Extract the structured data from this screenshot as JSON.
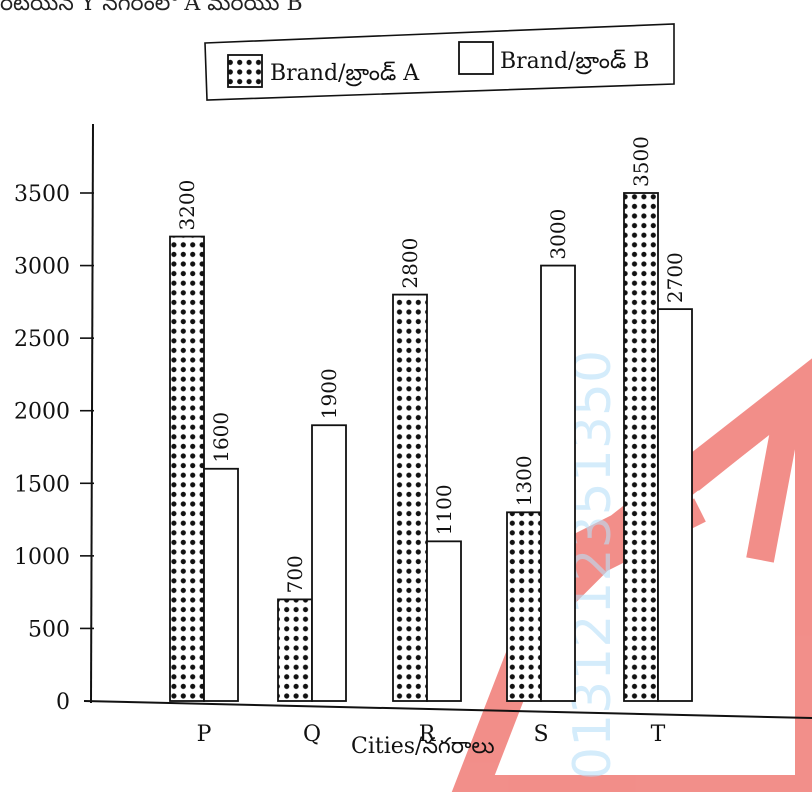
{
  "header_text": "రేటయిన్ Y నగరంలో A మరియు B",
  "watermark": {
    "text": "0131212351350",
    "logo_color": "#e8332a"
  },
  "chart_data": {
    "type": "bar",
    "title": "",
    "xlabel": "Cities/నగరాలు",
    "ylabel": "",
    "categories": [
      "P",
      "Q",
      "R",
      "S",
      "T"
    ],
    "series": [
      {
        "name": "Brand/బ్రాండ్ A",
        "pattern": "dots",
        "values": [
          3200,
          700,
          2800,
          1300,
          3500
        ],
        "data_labels": [
          "3200",
          "700",
          "2800",
          "1300",
          "3500"
        ]
      },
      {
        "name": "Brand/బ్రాండ్ B",
        "pattern": "plain",
        "values": [
          1600,
          1900,
          1100,
          3000,
          2700
        ],
        "data_labels": [
          "1600",
          "1900",
          "1100",
          "3000",
          "2700"
        ]
      }
    ],
    "yticks": [
      "0",
      "500",
      "1000",
      "1500",
      "2000",
      "2500",
      "3000",
      "3500"
    ],
    "ylim": [
      0,
      3500
    ],
    "grid": false,
    "legend_position": "top-right"
  }
}
